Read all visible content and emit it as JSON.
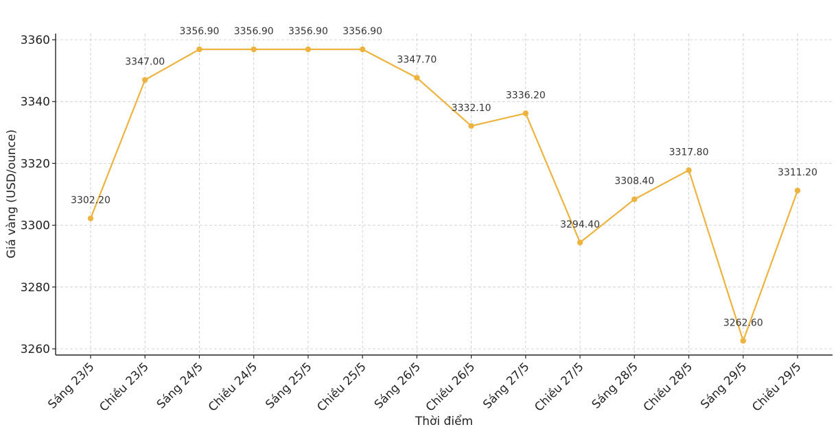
{
  "chart_data": {
    "type": "line",
    "title": "",
    "xlabel": "Thời điểm",
    "ylabel": "Giá vàng (USD/ounce)",
    "categories": [
      "Sáng 23/5",
      "Chiều 23/5",
      "Sáng 24/5",
      "Chiều 24/5",
      "Sáng 25/5",
      "Chiều 25/5",
      "Sáng 26/5",
      "Chiều 26/5",
      "Sáng 27/5",
      "Chiều 27/5",
      "Sáng 28/5",
      "Chiều 28/5",
      "Sáng 29/5",
      "Chiều 29/5"
    ],
    "series": [
      {
        "values": [
          3302.2,
          3347.0,
          3356.9,
          3356.9,
          3356.9,
          3356.9,
          3347.7,
          3332.1,
          3336.2,
          3294.4,
          3308.4,
          3317.8,
          3262.6,
          3311.2
        ],
        "labels": [
          "3302.20",
          "3347.00",
          "3356.90",
          "3356.90",
          "3356.90",
          "3356.90",
          "3347.70",
          "3332.10",
          "3336.20",
          "3294.40",
          "3308.40",
          "3317.80",
          "3262.60",
          "3311.20"
        ],
        "color": "#EDB33E"
      }
    ],
    "y_ticks": [
      "3260",
      "3280",
      "3300",
      "3320",
      "3340",
      "3360"
    ],
    "ylim": [
      3258,
      3362
    ],
    "grid": true,
    "legend": "none"
  }
}
